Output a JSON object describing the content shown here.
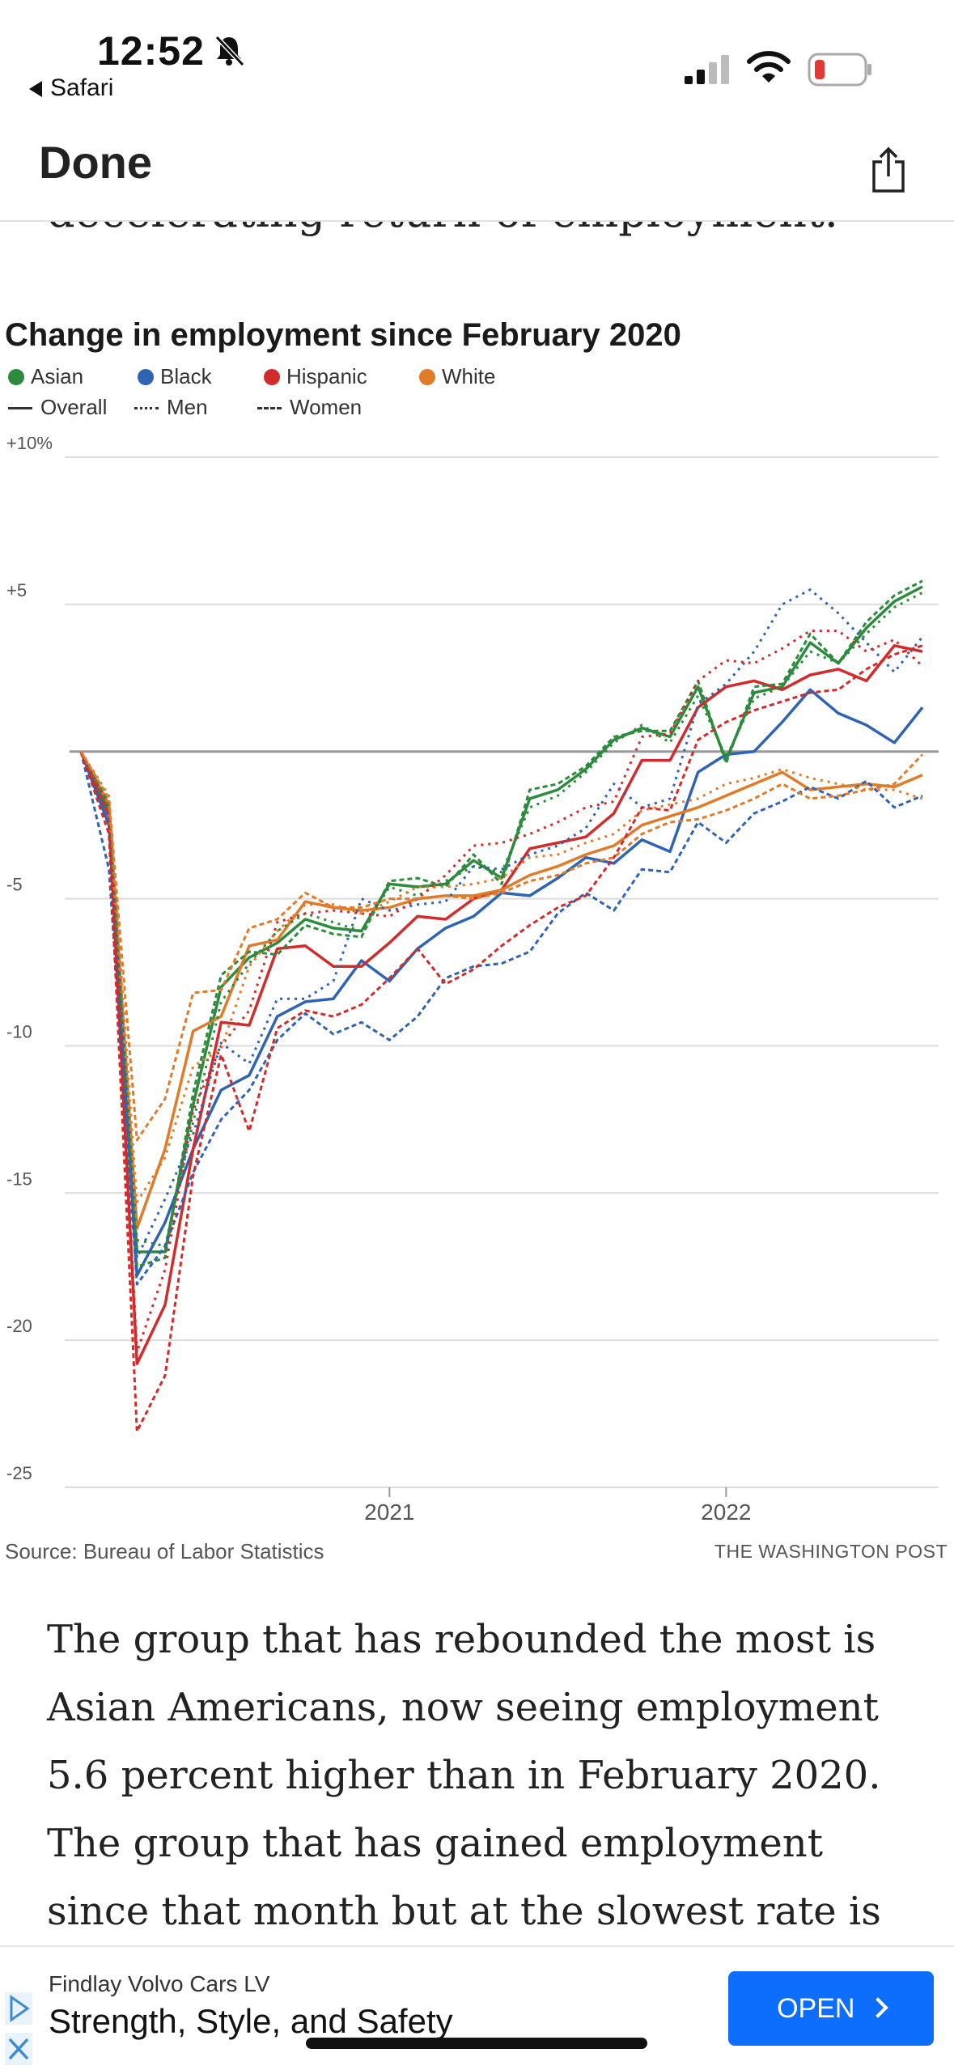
{
  "status_bar": {
    "time": "12:52",
    "back_app": "Safari",
    "battery_color": "#e53935"
  },
  "nav": {
    "done_label": "Done",
    "share_icon": "share-icon"
  },
  "article": {
    "cut_line": "decelerating return of employment.",
    "paragraph": "The group that has rebounded the most is Asian Americans, now seeing employment 5.6 percent higher than in February 2020. The group that has gained employment since that month but at the slowest rate is"
  },
  "chart_data": {
    "type": "line",
    "title": "Change in employment since February 2020",
    "legend": {
      "groups": [
        {
          "name": "Asian",
          "color": "#2e8b3e"
        },
        {
          "name": "Black",
          "color": "#2f63b3"
        },
        {
          "name": "Hispanic",
          "color": "#d22b2b"
        },
        {
          "name": "White",
          "color": "#e07b2a"
        }
      ],
      "styles": [
        {
          "name": "Overall",
          "style": "solid"
        },
        {
          "name": "Men",
          "style": "dotted"
        },
        {
          "name": "Women",
          "style": "dashed"
        }
      ]
    },
    "y_ticks": [
      {
        "value": 10,
        "label": "+10%"
      },
      {
        "value": 5,
        "label": "+5"
      },
      {
        "value": 0,
        "label": ""
      },
      {
        "value": -5,
        "label": "-5"
      },
      {
        "value": -10,
        "label": "-10"
      },
      {
        "value": -15,
        "label": "-15"
      },
      {
        "value": -20,
        "label": "-20"
      },
      {
        "value": -25,
        "label": "-25"
      }
    ],
    "x_ticks": [
      {
        "value": "2021-01",
        "label": "2021"
      },
      {
        "value": "2022-01",
        "label": "2022"
      }
    ],
    "ylim": [
      -25,
      10
    ],
    "xlim": [
      "2020-02",
      "2022-08"
    ],
    "x": [
      "2020-02",
      "2020-03",
      "2020-04",
      "2020-05",
      "2020-06",
      "2020-07",
      "2020-08",
      "2020-09",
      "2020-10",
      "2020-11",
      "2020-12",
      "2021-01",
      "2021-02",
      "2021-03",
      "2021-04",
      "2021-05",
      "2021-06",
      "2021-07",
      "2021-08",
      "2021-09",
      "2021-10",
      "2021-11",
      "2021-12",
      "2022-01",
      "2022-02",
      "2022-03",
      "2022-04",
      "2022-05",
      "2022-06",
      "2022-07",
      "2022-08"
    ],
    "series": [
      {
        "group": "Asian",
        "style": "solid",
        "color": "#2e8b3e",
        "values": [
          0,
          -2,
          -17,
          -17,
          -12,
          -8,
          -7,
          -6.5,
          -5.7,
          -6,
          -6.1,
          -4.5,
          -4.6,
          -4.5,
          -3.7,
          -4.3,
          -1.6,
          -1.3,
          -0.6,
          0.4,
          0.8,
          0.5,
          2.2,
          -0.3,
          2,
          2.2,
          3.7,
          3,
          4.2,
          5.1,
          5.6
        ]
      },
      {
        "group": "Black",
        "style": "solid",
        "color": "#2f63b3",
        "values": [
          0,
          -2.5,
          -17.8,
          -16,
          -13.5,
          -11.5,
          -11,
          -9,
          -8.5,
          -8.4,
          -7.1,
          -7.8,
          -6.7,
          -6,
          -5.6,
          -4.8,
          -4.9,
          -4.3,
          -3.6,
          -3.8,
          -3,
          -3.4,
          -0.7,
          -0.1,
          0,
          1,
          2.1,
          1.3,
          0.9,
          0.3,
          1.5
        ]
      },
      {
        "group": "Hispanic",
        "style": "solid",
        "color": "#d22b2b",
        "values": [
          0,
          -2.2,
          -20.8,
          -18.8,
          -13.5,
          -9.2,
          -9.3,
          -6.7,
          -6.6,
          -7.3,
          -7.3,
          -6.5,
          -5.6,
          -5.7,
          -5,
          -4.7,
          -3.3,
          -3.1,
          -2.9,
          -2.1,
          -0.3,
          -0.3,
          1.5,
          2.2,
          2.4,
          2.1,
          2.6,
          2.8,
          2.4,
          3.6,
          3.4
        ]
      },
      {
        "group": "White",
        "style": "solid",
        "color": "#e07b2a",
        "values": [
          0,
          -1.8,
          -16.2,
          -13.5,
          -9.5,
          -9,
          -6.6,
          -6.4,
          -5.1,
          -5.3,
          -5.4,
          -5.3,
          -5,
          -4.9,
          -4.9,
          -4.7,
          -4.2,
          -3.9,
          -3.5,
          -3.2,
          -2.5,
          -2.2,
          -1.9,
          -1.5,
          -1.1,
          -0.7,
          -1.3,
          -1.2,
          -1.1,
          -1.2,
          -0.8
        ]
      },
      {
        "group": "Asian",
        "style": "dotted",
        "color": "#2e8b3e",
        "values": [
          0,
          -2.2,
          -16.6,
          -16.8,
          -12.6,
          -8.5,
          -7.2,
          -6.1,
          -5.5,
          -5.8,
          -6.1,
          -4.6,
          -4.9,
          -4.4,
          -3.9,
          -4.1,
          -1.9,
          -1.5,
          -0.7,
          0.3,
          0.9,
          0.3,
          1.9,
          -0.2,
          1.8,
          2.2,
          3.4,
          3,
          4,
          4.9,
          5.4
        ]
      },
      {
        "group": "Asian",
        "style": "dashed",
        "color": "#2e8b3e",
        "values": [
          0,
          -1.8,
          -17.5,
          -17.2,
          -11.6,
          -7.6,
          -6.8,
          -6.9,
          -5.9,
          -6.2,
          -6.3,
          -4.4,
          -4.3,
          -4.6,
          -3.5,
          -4.5,
          -1.3,
          -1.1,
          -0.5,
          0.5,
          0.7,
          0.7,
          2.4,
          -0.4,
          2.2,
          2.3,
          4,
          3,
          4.4,
          5.3,
          5.8
        ]
      },
      {
        "group": "Black",
        "style": "dotted",
        "color": "#2f63b3",
        "values": [
          0,
          -2.3,
          -17.2,
          -15.2,
          -13,
          -9.9,
          -10.6,
          -8.4,
          -8.4,
          -7.8,
          -5,
          -5.4,
          -5.2,
          -5.1,
          -3.9,
          -4,
          -3.5,
          -3.2,
          -2.6,
          -1.1,
          -1.9,
          -1.6,
          1.6,
          2.3,
          3.4,
          5,
          5.5,
          4.7,
          3.7,
          2.7,
          3.9
        ]
      },
      {
        "group": "Black",
        "style": "dashed",
        "color": "#2f63b3",
        "values": [
          0,
          -4,
          -18.1,
          -16.8,
          -14.3,
          -12.5,
          -11.5,
          -9.8,
          -8.9,
          -9.6,
          -9.2,
          -9.8,
          -9,
          -7.7,
          -7.3,
          -7.2,
          -6.8,
          -5.5,
          -4.8,
          -5.4,
          -4,
          -4.1,
          -2.4,
          -3.1,
          -2.1,
          -1.7,
          -1.2,
          -1.6,
          -1,
          -1.9,
          -1.5
        ]
      },
      {
        "group": "Hispanic",
        "style": "dotted",
        "color": "#d22b2b",
        "values": [
          0,
          -1.9,
          -20.4,
          -17.6,
          -12.2,
          -10,
          -8.8,
          -5.8,
          -5.5,
          -5.4,
          -5.5,
          -5.6,
          -5,
          -4.2,
          -3.2,
          -3.1,
          -2.8,
          -2.4,
          -1.9,
          -1.7,
          0.5,
          0.6,
          2.4,
          3.1,
          3,
          3.5,
          4.1,
          4.1,
          3.4,
          3.8,
          2.9
        ]
      },
      {
        "group": "Hispanic",
        "style": "dashed",
        "color": "#d22b2b",
        "values": [
          0,
          -2.8,
          -23.1,
          -21.2,
          -14.4,
          -10.3,
          -12.9,
          -9.4,
          -8.8,
          -9,
          -8.6,
          -7.7,
          -6.7,
          -7.9,
          -7.4,
          -6.6,
          -5.9,
          -5.3,
          -4.9,
          -3.6,
          -1.9,
          -2,
          0.4,
          1,
          1.4,
          1.7,
          2,
          2.1,
          2.8,
          3.3,
          3.6
        ]
      },
      {
        "group": "White",
        "style": "dotted",
        "color": "#e07b2a",
        "values": [
          0,
          -1.5,
          -15.3,
          -13.8,
          -10.7,
          -10.1,
          -7.3,
          -6.1,
          -5.2,
          -5.2,
          -5.5,
          -5.1,
          -4.6,
          -4.6,
          -4.5,
          -4.3,
          -3.6,
          -3.5,
          -3.1,
          -2.8,
          -2,
          -1.8,
          -1.6,
          -1.1,
          -0.9,
          -0.6,
          -0.9,
          -1.1,
          -1.3,
          -1.3,
          -1.6
        ]
      },
      {
        "group": "White",
        "style": "dashed",
        "color": "#e07b2a",
        "values": [
          0,
          -1.6,
          -13.2,
          -11.8,
          -8.2,
          -8.1,
          -6,
          -5.7,
          -4.8,
          -5.3,
          -5.3,
          -5,
          -5,
          -4.9,
          -5,
          -4.8,
          -4.4,
          -4.2,
          -3.8,
          -3.6,
          -2.8,
          -2.4,
          -2.3,
          -2,
          -1.6,
          -1.1,
          -1.6,
          -1.5,
          -1.3,
          -1.1,
          -0.1
        ]
      }
    ],
    "source": "Source: Bureau of Labor Statistics",
    "credit": "THE WASHINGTON POST"
  },
  "ad": {
    "advertiser": "Findlay Volvo Cars LV",
    "headline": "Strength, Style, and Safety",
    "cta_label": "OPEN",
    "accent": "#0d6efd"
  }
}
